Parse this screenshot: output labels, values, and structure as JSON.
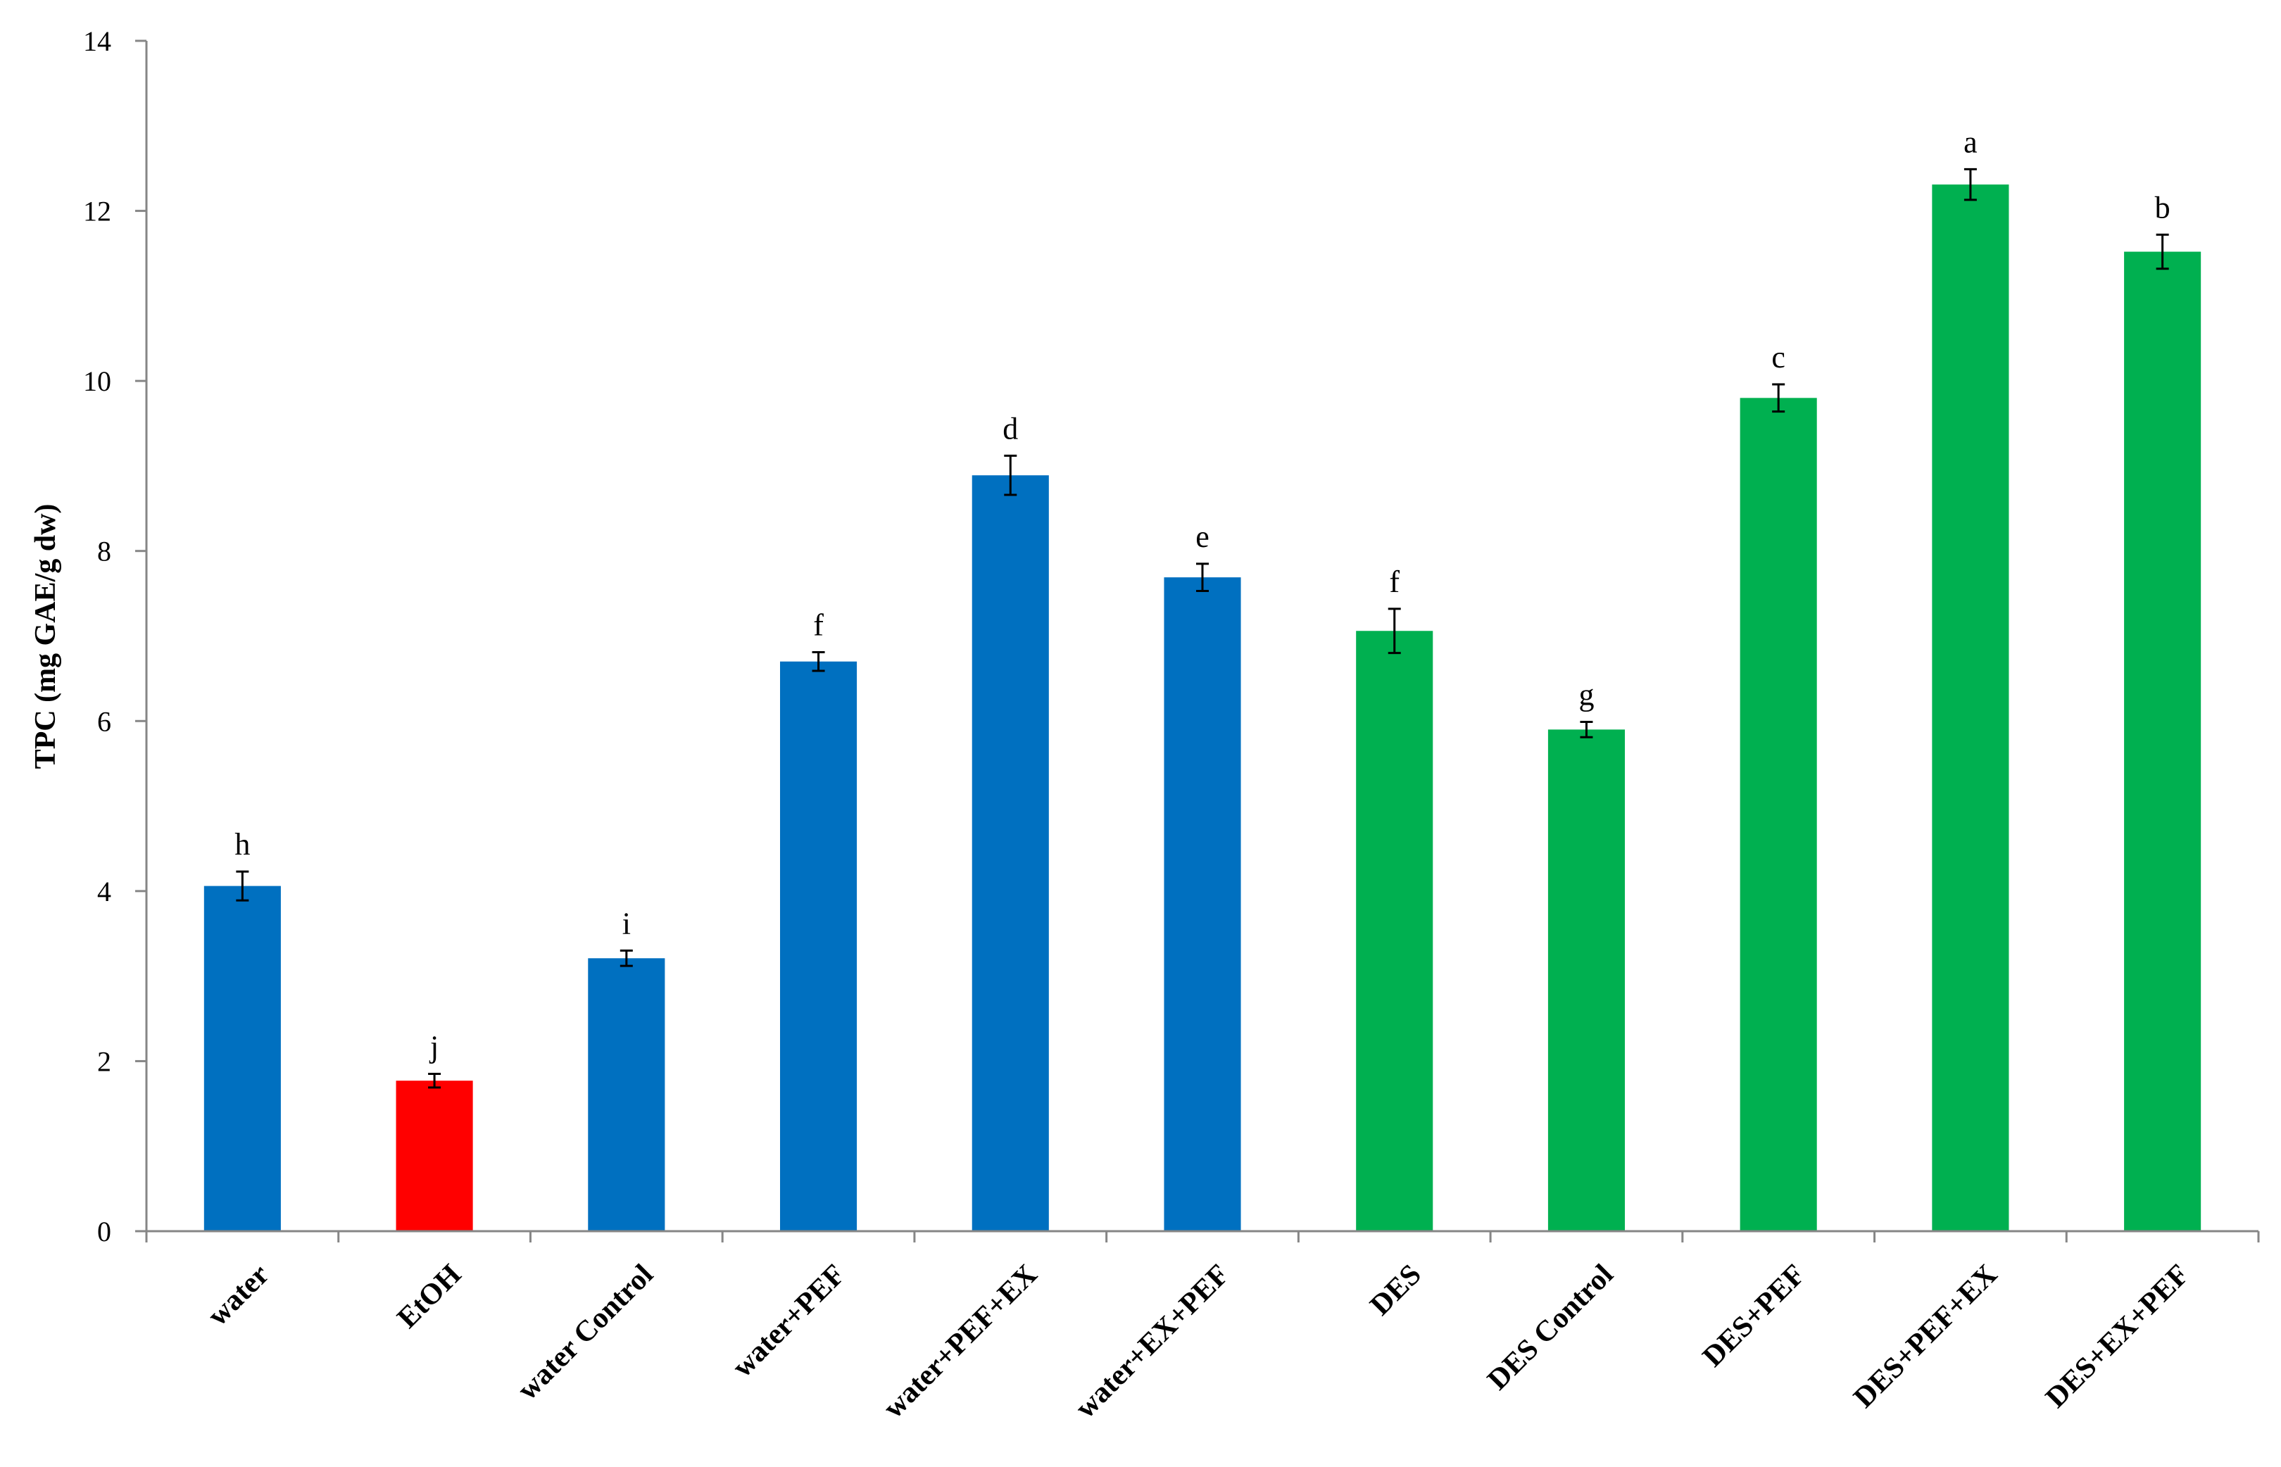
{
  "chart_data": {
    "type": "bar",
    "ylabel": "TPC (mg GAE/g dw)",
    "xlabel": "",
    "ylim": [
      0,
      14
    ],
    "yticks": [
      0,
      2,
      4,
      6,
      8,
      10,
      12,
      14
    ],
    "grid": false,
    "legend": "none",
    "categories": [
      "water",
      "EtOH",
      "water Control",
      "water+PEF",
      "water+PEF+EX",
      "water+EX+PEF",
      "DES",
      "DES Control",
      "DES+PEF",
      "DES+PEF+EX",
      "DES+EX+PEF"
    ],
    "values": [
      4.06,
      1.77,
      3.21,
      6.7,
      8.89,
      7.69,
      7.06,
      5.9,
      9.8,
      12.31,
      11.52
    ],
    "errors": [
      0.17,
      0.08,
      0.09,
      0.11,
      0.23,
      0.16,
      0.26,
      0.09,
      0.16,
      0.18,
      0.2
    ],
    "significance_letters": [
      "h",
      "j",
      "i",
      "f",
      "d",
      "e",
      "f",
      "g",
      "c",
      "a",
      "b"
    ],
    "bar_colors": [
      "#0070c0",
      "#ff0000",
      "#0070c0",
      "#0070c0",
      "#0070c0",
      "#0070c0",
      "#00b050",
      "#00b050",
      "#00b050",
      "#00b050",
      "#00b050"
    ]
  }
}
